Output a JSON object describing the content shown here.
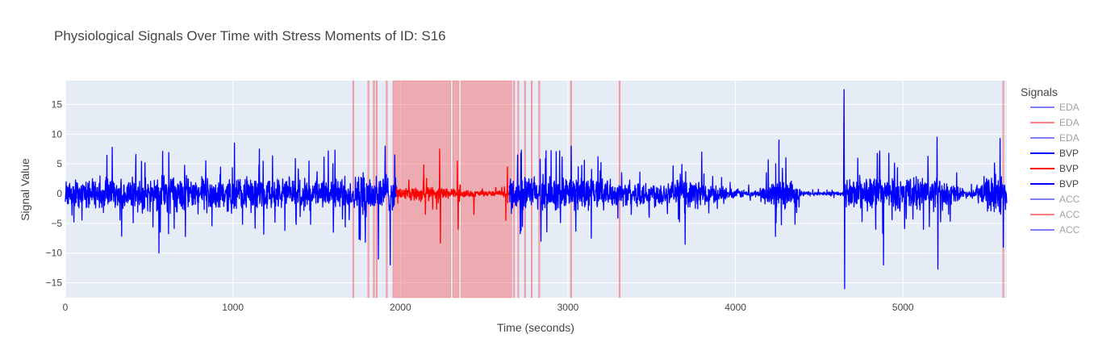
{
  "chart_data": {
    "type": "line",
    "title": "Physiological Signals Over Time with Stress Moments of ID: S16",
    "xlabel": "Time (seconds)",
    "ylabel": "Signal Value",
    "xlim": [
      0,
      5620
    ],
    "ylim": [
      -17.5,
      19
    ],
    "xticks": [
      0,
      1000,
      2000,
      3000,
      4000,
      5000
    ],
    "yticks": [
      -15,
      -10,
      -5,
      0,
      5,
      10,
      15
    ],
    "grid": true,
    "legend": {
      "title": "Signals",
      "position": "right",
      "entries": [
        {
          "name": "EDA",
          "color": "#0000ff",
          "faded": true
        },
        {
          "name": "EDA",
          "color": "#ff0000",
          "faded": true
        },
        {
          "name": "EDA",
          "color": "#0000ff",
          "faded": true
        },
        {
          "name": "BVP",
          "color": "#0000ff",
          "faded": false
        },
        {
          "name": "BVP",
          "color": "#ff0000",
          "faded": false
        },
        {
          "name": "BVP",
          "color": "#0000ff",
          "faded": false
        },
        {
          "name": "ACC",
          "color": "#0000ff",
          "faded": true
        },
        {
          "name": "ACC",
          "color": "#ff0000",
          "faded": true
        },
        {
          "name": "ACC",
          "color": "#0000ff",
          "faded": true
        }
      ]
    },
    "stress_regions": [
      [
        1715,
        1722
      ],
      [
        1805,
        1812
      ],
      [
        1838,
        1846
      ],
      [
        1855,
        1862
      ],
      [
        1915,
        1922
      ],
      [
        1955,
        2300
      ],
      [
        2312,
        2350
      ],
      [
        2362,
        2665
      ],
      [
        2675,
        2682
      ],
      [
        2700,
        2706
      ],
      [
        2740,
        2746
      ],
      [
        2780,
        2786
      ],
      [
        2825,
        2832
      ],
      [
        3015,
        3022
      ],
      [
        3305,
        3312
      ],
      [
        5595,
        5602
      ]
    ],
    "series": [
      {
        "name": "BVP",
        "color": "#0000ff",
        "x_range": [
          0,
          1975
        ],
        "amplitude_profile": [
          [
            0,
            2.5
          ],
          [
            300,
            3.5
          ],
          [
            1000,
            3.5
          ],
          [
            1400,
            3
          ],
          [
            1700,
            3
          ],
          [
            1800,
            4.5
          ],
          [
            1975,
            4
          ]
        ],
        "spikes": [
          [
            280,
            7.8
          ],
          [
            560,
            -10
          ],
          [
            1010,
            8.5
          ],
          [
            1160,
            7.5
          ],
          [
            1570,
            7.2
          ],
          [
            1600,
            -6.5
          ],
          [
            1610,
            7.3
          ],
          [
            1910,
            8
          ],
          [
            1940,
            -12
          ],
          [
            1870,
            -11
          ]
        ]
      },
      {
        "name": "BVP",
        "color": "#ff0000",
        "x_range": [
          1975,
          2650
        ],
        "amplitude_profile": [
          [
            1975,
            1.2
          ],
          [
            2100,
            1.5
          ],
          [
            2250,
            1.2
          ],
          [
            2400,
            0.6
          ],
          [
            2600,
            0.5
          ],
          [
            2650,
            0.8
          ]
        ],
        "spikes": [
          [
            2235,
            7.5
          ],
          [
            2240,
            -8.3
          ],
          [
            2140,
            4.8
          ],
          [
            2150,
            -3.5
          ],
          [
            2340,
            5.5
          ],
          [
            2345,
            -6
          ],
          [
            2440,
            4.5
          ],
          [
            2440,
            -3.5
          ],
          [
            2630,
            -4.5
          ],
          [
            2640,
            4.5
          ]
        ]
      },
      {
        "name": "BVP",
        "color": "#0000ff",
        "x_range": [
          2650,
          5620
        ],
        "amplitude_profile": [
          [
            2650,
            3.5
          ],
          [
            3050,
            3.5
          ],
          [
            3300,
            2.5
          ],
          [
            3800,
            2.8
          ],
          [
            3950,
            1
          ],
          [
            4150,
            0.6
          ],
          [
            4200,
            3
          ],
          [
            4350,
            3
          ],
          [
            4400,
            0.5
          ],
          [
            4650,
            0.4
          ],
          [
            4660,
            3
          ],
          [
            4760,
            3.5
          ],
          [
            5200,
            3.5
          ],
          [
            5400,
            0.5
          ],
          [
            5500,
            3.5
          ],
          [
            5620,
            4.5
          ]
        ],
        "spikes": [
          [
            2700,
            6.5
          ],
          [
            2840,
            -8
          ],
          [
            2870,
            7.2
          ],
          [
            3020,
            8
          ],
          [
            3140,
            -7.5
          ],
          [
            3700,
            -8.5
          ],
          [
            3800,
            7
          ],
          [
            4240,
            -7.2
          ],
          [
            4260,
            9
          ],
          [
            4650,
            17.5
          ],
          [
            4648,
            11
          ],
          [
            4652,
            -16
          ],
          [
            4885,
            -12
          ],
          [
            5205,
            9.5
          ],
          [
            5210,
            -12.7
          ],
          [
            5580,
            9.3
          ],
          [
            5600,
            -9
          ]
        ]
      }
    ]
  }
}
